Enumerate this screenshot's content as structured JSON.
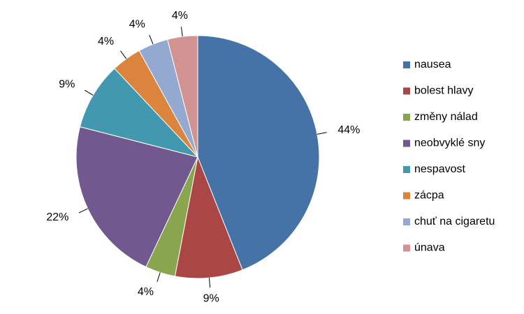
{
  "chart_data": {
    "type": "pie",
    "categories": [
      "nausea",
      "bolest hlavy",
      "změny nálad",
      "neobvyklé sny",
      "nespavost",
      "zácpa",
      "chuť na cigaretu",
      "únava"
    ],
    "values": [
      44,
      9,
      4,
      22,
      9,
      4,
      4,
      4
    ],
    "value_labels": [
      "44%",
      "9%",
      "4%",
      "22%",
      "9%",
      "4%",
      "4%",
      "4%"
    ],
    "colors": [
      "#4572a7",
      "#aa4643",
      "#89a54e",
      "#71588f",
      "#4198af",
      "#db843d",
      "#93a9cf",
      "#d19392"
    ],
    "legend": "right"
  }
}
